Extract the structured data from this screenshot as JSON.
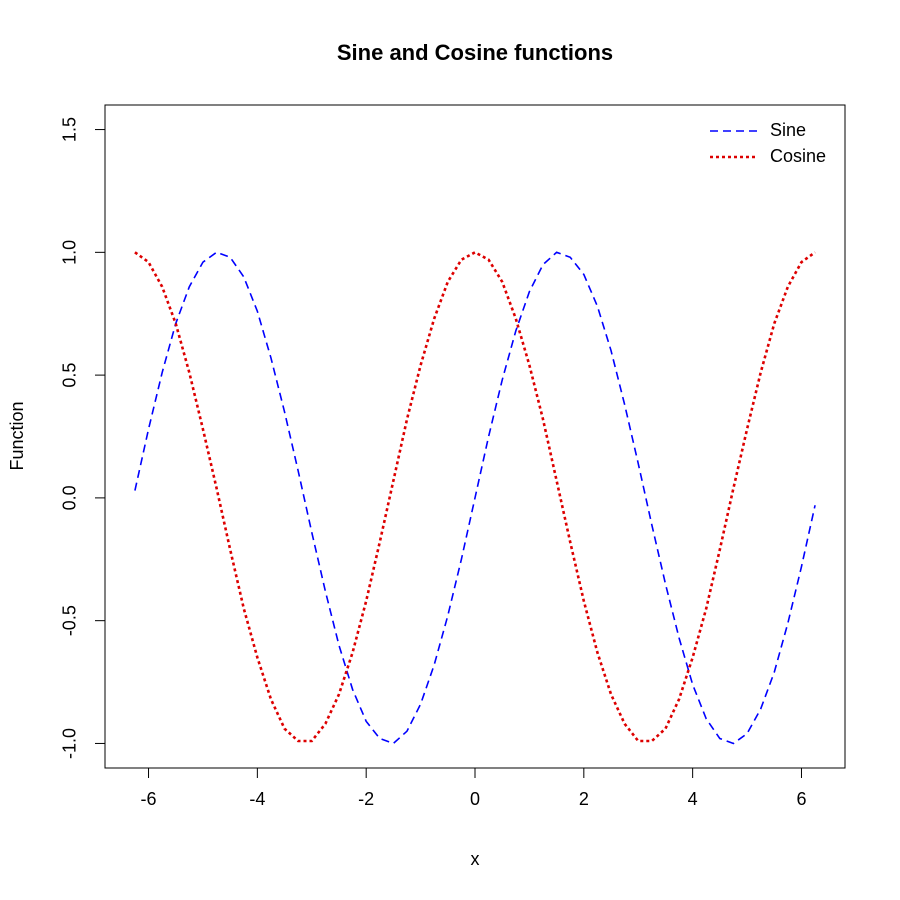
{
  "chart_data": {
    "type": "line",
    "title": "Sine and Cosine functions",
    "x_label": "x",
    "y_label": "Function",
    "x": [
      -6.25,
      -6,
      -5.75,
      -5.5,
      -5.25,
      -5,
      -4.75,
      -4.5,
      -4.25,
      -4,
      -3.75,
      -3.5,
      -3.25,
      -3,
      -2.75,
      -2.5,
      -2.25,
      -2,
      -1.75,
      -1.5,
      -1.25,
      -1,
      -0.75,
      -0.5,
      -0.25,
      0,
      0.25,
      0.5,
      0.75,
      1,
      1.25,
      1.5,
      1.75,
      2,
      2.25,
      2.5,
      2.75,
      3,
      3.25,
      3.5,
      3.75,
      4,
      4.25,
      4.5,
      4.75,
      5,
      5.25,
      5.5,
      5.75,
      6,
      6.25
    ],
    "series": [
      {
        "name": "Sine",
        "color": "#0000ff",
        "dash": "dashed",
        "values": [
          0.03,
          0.28,
          0.51,
          0.71,
          0.86,
          0.96,
          1.0,
          0.98,
          0.9,
          0.76,
          0.57,
          0.35,
          0.11,
          -0.14,
          -0.38,
          -0.6,
          -0.78,
          -0.91,
          -0.98,
          -1.0,
          -0.95,
          -0.84,
          -0.68,
          -0.48,
          -0.25,
          0,
          0.25,
          0.48,
          0.68,
          0.84,
          0.95,
          1.0,
          0.98,
          0.91,
          0.78,
          0.6,
          0.38,
          0.14,
          -0.11,
          -0.35,
          -0.57,
          -0.76,
          -0.9,
          -0.98,
          -1.0,
          -0.96,
          -0.86,
          -0.71,
          -0.51,
          -0.28,
          -0.03
        ]
      },
      {
        "name": "Cosine",
        "color": "#dd0000",
        "dash": "dotted",
        "values": [
          1.0,
          0.96,
          0.86,
          0.71,
          0.51,
          0.28,
          0.04,
          -0.21,
          -0.45,
          -0.65,
          -0.82,
          -0.94,
          -0.99,
          -0.99,
          -0.92,
          -0.8,
          -0.63,
          -0.42,
          -0.18,
          0.07,
          0.32,
          0.54,
          0.73,
          0.88,
          0.97,
          1,
          0.97,
          0.88,
          0.73,
          0.54,
          0.32,
          0.07,
          -0.18,
          -0.42,
          -0.63,
          -0.8,
          -0.92,
          -0.99,
          -0.99,
          -0.94,
          -0.82,
          -0.65,
          -0.45,
          -0.21,
          0.04,
          0.28,
          0.51,
          0.71,
          0.86,
          0.96,
          1.0
        ]
      }
    ],
    "xlim": [
      -6.8,
      6.8
    ],
    "ylim": [
      -1.1,
      1.6
    ],
    "xticks": [
      -6,
      -4,
      -2,
      0,
      2,
      4,
      6
    ],
    "yticks": [
      {
        "value": -1,
        "label": "-1.0"
      },
      -0.5,
      {
        "value": 0,
        "label": "0.0"
      },
      0.5,
      {
        "value": 1,
        "label": "1.0"
      },
      1.5
    ],
    "legend": "top-right"
  }
}
